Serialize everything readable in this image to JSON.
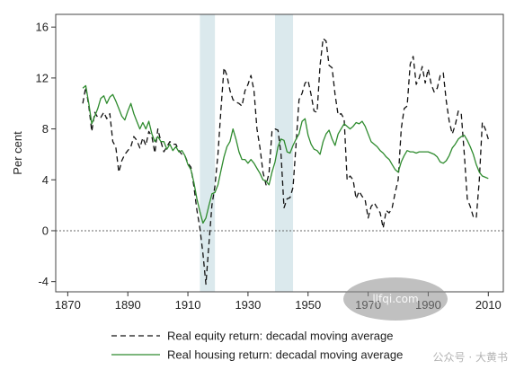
{
  "chart_data": {
    "type": "line",
    "title": "",
    "xlabel": "",
    "ylabel": "Per cent",
    "xlim": [
      1866,
      2015
    ],
    "ylim": [
      -4.8,
      17
    ],
    "xticks": [
      1870,
      1890,
      1910,
      1930,
      1950,
      1970,
      1990,
      2010
    ],
    "yticks": [
      -4,
      0,
      4,
      8,
      12,
      16
    ],
    "zero_line": true,
    "grid": false,
    "legend_position": "bottom",
    "shaded_periods": [
      {
        "start": 1914,
        "end": 1919
      },
      {
        "start": 1939,
        "end": 1945
      }
    ],
    "colors": {
      "equity": "#111111",
      "housing": "#2e8b2e",
      "shading": "#dbe9ed",
      "zero_line": "#666666",
      "plot_border": "#444444"
    },
    "series": [
      {
        "name": "Real equity return: decadal moving average",
        "style": "dashed",
        "x": [
          1875,
          1876,
          1877,
          1878,
          1879,
          1880,
          1881,
          1882,
          1883,
          1884,
          1885,
          1886,
          1887,
          1888,
          1889,
          1890,
          1891,
          1892,
          1893,
          1894,
          1895,
          1896,
          1897,
          1898,
          1899,
          1900,
          1901,
          1902,
          1903,
          1904,
          1905,
          1906,
          1907,
          1908,
          1909,
          1910,
          1911,
          1912,
          1913,
          1914,
          1915,
          1916,
          1917,
          1918,
          1919,
          1920,
          1921,
          1922,
          1923,
          1924,
          1925,
          1926,
          1927,
          1928,
          1929,
          1930,
          1931,
          1932,
          1933,
          1934,
          1935,
          1936,
          1937,
          1938,
          1939,
          1940,
          1941,
          1942,
          1943,
          1944,
          1945,
          1946,
          1947,
          1948,
          1949,
          1950,
          1951,
          1952,
          1953,
          1954,
          1955,
          1956,
          1957,
          1958,
          1959,
          1960,
          1961,
          1962,
          1963,
          1964,
          1965,
          1966,
          1967,
          1968,
          1969,
          1970,
          1971,
          1972,
          1973,
          1974,
          1975,
          1976,
          1977,
          1978,
          1979,
          1980,
          1981,
          1982,
          1983,
          1984,
          1985,
          1986,
          1987,
          1988,
          1989,
          1990,
          1991,
          1992,
          1993,
          1994,
          1995,
          1996,
          1997,
          1998,
          1999,
          2000,
          2001,
          2002,
          2003,
          2004,
          2005,
          2006,
          2007,
          2008,
          2009,
          2010
        ],
        "values": [
          10.0,
          11.3,
          9.8,
          7.8,
          9.3,
          8.9,
          8.9,
          9.3,
          8.8,
          9.2,
          7.0,
          6.6,
          4.6,
          5.5,
          6.0,
          6.3,
          6.6,
          7.4,
          7.1,
          6.5,
          7.3,
          6.7,
          7.8,
          7.4,
          6.1,
          8.0,
          7.0,
          6.2,
          6.6,
          7.0,
          6.8,
          6.8,
          6.3,
          6.0,
          5.9,
          5.3,
          5.0,
          3.5,
          1.6,
          0.2,
          -1.8,
          -4.2,
          -1.0,
          2.0,
          3.5,
          6.0,
          9.5,
          12.8,
          12.2,
          11.0,
          10.3,
          10.1,
          10.0,
          9.8,
          11.0,
          11.5,
          12.2,
          11.0,
          8.0,
          6.5,
          4.6,
          3.6,
          4.5,
          7.8,
          8.0,
          7.9,
          6.0,
          1.8,
          2.5,
          2.6,
          3.4,
          6.8,
          10.3,
          10.8,
          11.6,
          11.8,
          10.7,
          9.4,
          9.3,
          13.0,
          15.1,
          14.9,
          13.0,
          12.8,
          10.7,
          9.1,
          9.2,
          8.8,
          4.0,
          4.3,
          4.0,
          2.5,
          3.1,
          2.7,
          2.4,
          1.0,
          1.9,
          2.2,
          1.8,
          1.4,
          0.2,
          1.6,
          1.4,
          1.8,
          3.0,
          4.0,
          8.0,
          9.6,
          9.8,
          13.1,
          13.7,
          11.5,
          12.0,
          12.9,
          11.6,
          12.7,
          11.5,
          10.9,
          11.2,
          12.2,
          12.4,
          10.2,
          8.6,
          7.6,
          8.3,
          9.4,
          9.2,
          6.0,
          2.5,
          1.9,
          1.1,
          1.0,
          4.0,
          8.5,
          8.0,
          7.2
        ]
      },
      {
        "name": "Real housing return: decadal moving average",
        "style": "solid",
        "x": [
          1875,
          1876,
          1877,
          1878,
          1879,
          1880,
          1881,
          1882,
          1883,
          1884,
          1885,
          1886,
          1887,
          1888,
          1889,
          1890,
          1891,
          1892,
          1893,
          1894,
          1895,
          1896,
          1897,
          1898,
          1899,
          1900,
          1901,
          1902,
          1903,
          1904,
          1905,
          1906,
          1907,
          1908,
          1909,
          1910,
          1911,
          1912,
          1913,
          1914,
          1915,
          1916,
          1917,
          1918,
          1919,
          1920,
          1921,
          1922,
          1923,
          1924,
          1925,
          1926,
          1927,
          1928,
          1929,
          1930,
          1931,
          1932,
          1933,
          1934,
          1935,
          1936,
          1937,
          1938,
          1939,
          1940,
          1941,
          1942,
          1943,
          1944,
          1945,
          1946,
          1947,
          1948,
          1949,
          1950,
          1951,
          1952,
          1953,
          1954,
          1955,
          1956,
          1957,
          1958,
          1959,
          1960,
          1961,
          1962,
          1963,
          1964,
          1965,
          1966,
          1967,
          1968,
          1969,
          1970,
          1971,
          1972,
          1973,
          1974,
          1975,
          1976,
          1977,
          1978,
          1979,
          1980,
          1981,
          1982,
          1983,
          1984,
          1985,
          1986,
          1987,
          1988,
          1989,
          1990,
          1991,
          1992,
          1993,
          1994,
          1995,
          1996,
          1997,
          1998,
          1999,
          2000,
          2001,
          2002,
          2003,
          2004,
          2005,
          2006,
          2007,
          2008,
          2009,
          2010
        ],
        "values": [
          11.2,
          11.4,
          10.0,
          8.4,
          9.0,
          9.6,
          10.4,
          10.6,
          10.0,
          10.5,
          10.7,
          10.2,
          9.6,
          9.0,
          8.7,
          9.4,
          10.0,
          9.2,
          8.6,
          8.0,
          8.5,
          8.0,
          8.6,
          7.6,
          7.0,
          7.4,
          7.0,
          7.0,
          6.4,
          6.8,
          6.3,
          6.6,
          6.2,
          6.3,
          5.9,
          5.2,
          4.8,
          3.8,
          2.5,
          1.5,
          0.6,
          1.0,
          2.0,
          2.9,
          3.0,
          3.6,
          4.7,
          5.8,
          6.6,
          7.0,
          8.0,
          7.2,
          6.2,
          5.6,
          5.6,
          5.3,
          5.6,
          5.3,
          4.9,
          4.5,
          4.0,
          3.9,
          3.6,
          4.6,
          5.4,
          6.6,
          7.2,
          7.1,
          6.2,
          6.1,
          6.7,
          7.2,
          7.6,
          8.6,
          8.8,
          7.5,
          6.8,
          6.4,
          6.3,
          6.0,
          7.0,
          7.6,
          7.9,
          7.2,
          6.7,
          7.6,
          8.0,
          8.4,
          8.2,
          8.0,
          8.2,
          8.5,
          8.4,
          8.6,
          8.2,
          7.6,
          7.0,
          6.8,
          6.6,
          6.3,
          6.1,
          5.8,
          5.6,
          5.2,
          4.8,
          4.6,
          5.4,
          5.9,
          6.3,
          6.2,
          6.2,
          6.1,
          6.2,
          6.2,
          6.2,
          6.2,
          6.1,
          6.0,
          5.8,
          5.4,
          5.3,
          5.5,
          5.9,
          6.5,
          6.8,
          7.2,
          7.4,
          7.5,
          7.1,
          6.6,
          6.0,
          5.2,
          4.6,
          4.3,
          4.2,
          4.1
        ]
      }
    ]
  },
  "watermarks": {
    "ellipse_text": "llfqi.com",
    "bottom_text": "公众号 · 大黄书"
  }
}
